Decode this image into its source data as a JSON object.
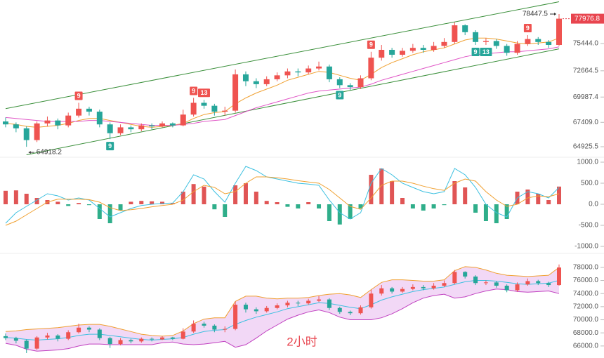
{
  "chart_data": [
    {
      "type": "candlestick",
      "open": [
        67500,
        67200,
        66800,
        65600,
        67300,
        67600,
        67100,
        68100,
        68800,
        68500,
        67200,
        66300,
        66900,
        66700,
        67100,
        67000,
        67300,
        67100,
        68200,
        69400,
        69100,
        68500,
        68600,
        72300,
        71600,
        71300,
        71800,
        72200,
        72600,
        72500,
        72900,
        73100,
        71800,
        71200,
        71000,
        71900,
        74000,
        74800,
        74300,
        74700,
        75000,
        74800,
        75200,
        75600,
        77300,
        76600,
        75600,
        75700,
        75200,
        74500,
        75400,
        75900,
        75600,
        75300
      ],
      "high": [
        67900,
        67400,
        67000,
        67500,
        68000,
        67800,
        68400,
        69400,
        69000,
        68700,
        67400,
        67200,
        67100,
        67300,
        67300,
        67500,
        67400,
        68700,
        69900,
        69700,
        69300,
        69000,
        72800,
        72600,
        71900,
        72100,
        72500,
        72900,
        72900,
        73200,
        73600,
        73300,
        72000,
        71400,
        72200,
        74600,
        75300,
        75000,
        75000,
        75400,
        75300,
        75600,
        76000,
        77600,
        77400,
        76800,
        76000,
        75900,
        75400,
        75700,
        76300,
        76100,
        75800,
        78447.5
      ],
      "low": [
        66900,
        66400,
        64918.2,
        65400,
        67000,
        66700,
        66900,
        67900,
        68100,
        66900,
        65700,
        66100,
        66400,
        66500,
        66700,
        66900,
        66900,
        67000,
        68000,
        68800,
        68100,
        68100,
        68400,
        71100,
        70900,
        71100,
        71600,
        71900,
        72100,
        72300,
        72700,
        71500,
        70900,
        70700,
        70800,
        71700,
        73700,
        74000,
        74100,
        74500,
        74500,
        74600,
        75000,
        75400,
        76300,
        75300,
        75300,
        74900,
        74200,
        74300,
        75200,
        75300,
        75000,
        75200
      ],
      "close": [
        67200,
        66800,
        65600,
        67300,
        67600,
        67100,
        68100,
        68800,
        68500,
        67200,
        66300,
        66900,
        66700,
        67100,
        67000,
        67300,
        67100,
        68200,
        69400,
        69100,
        68500,
        68600,
        72300,
        71600,
        71300,
        71800,
        72200,
        72600,
        72500,
        72900,
        73100,
        71800,
        71200,
        71000,
        71900,
        74000,
        74800,
        74300,
        74700,
        75000,
        74800,
        75200,
        75600,
        77300,
        76600,
        75600,
        75700,
        75200,
        74500,
        75400,
        75900,
        75600,
        75300,
        77976.8
      ],
      "up_color": "#ef5350",
      "down_color": "#26a69a",
      "series": [
        {
          "color": "#f0a030",
          "values": [
            67300,
            67200,
            67000,
            66900,
            67000,
            67100,
            67300,
            67600,
            67800,
            67800,
            67600,
            67400,
            67200,
            67000,
            66900,
            67000,
            67100,
            67300,
            67800,
            68200,
            68400,
            68500,
            69300,
            69900,
            70400,
            70800,
            71200,
            71700,
            72000,
            72300,
            72600,
            72500,
            72200,
            71900,
            71700,
            72300,
            73000,
            73500,
            73900,
            74300,
            74600,
            74800,
            75000,
            75400,
            75800,
            76000,
            76000,
            75900,
            75700,
            75500,
            75400,
            75500,
            75600,
            76000
          ]
        },
        {
          "color": "#e055c6",
          "values": [
            67900,
            67800,
            67700,
            67600,
            67500,
            67500,
            67500,
            67500,
            67600,
            67600,
            67500,
            67400,
            67300,
            67200,
            67100,
            67100,
            67100,
            67200,
            67300,
            67500,
            67600,
            67700,
            68100,
            68500,
            68900,
            69200,
            69500,
            69800,
            70100,
            70400,
            70600,
            70700,
            70800,
            70900,
            71000,
            71300,
            71700,
            72000,
            72300,
            72600,
            72900,
            73200,
            73500,
            73800,
            74100,
            74300,
            74400,
            74500,
            74600,
            74600,
            74700,
            74800,
            74900,
            75100
          ]
        }
      ],
      "trendlines": [
        {
          "color": "#3a8f3a",
          "x": [
            0,
            53
          ],
          "y": [
            68800,
            79700
          ]
        },
        {
          "color": "#3a8f3a",
          "x": [
            2,
            53
          ],
          "y": [
            64100,
            74900
          ]
        }
      ],
      "signals": [
        {
          "index": 7,
          "label": "9",
          "side": "above"
        },
        {
          "index": 18,
          "label": "9",
          "side": "above"
        },
        {
          "index": 19,
          "label": "13",
          "side": "above"
        },
        {
          "index": 35,
          "label": "9",
          "side": "above"
        },
        {
          "index": 50,
          "label": "9",
          "side": "above"
        },
        {
          "index": 10,
          "label": "9",
          "side": "below"
        },
        {
          "index": 32,
          "label": "9",
          "side": "below"
        },
        {
          "index": 45,
          "label": "9",
          "side": "below"
        },
        {
          "index": 46,
          "label": "13",
          "side": "below"
        }
      ],
      "tag_color": "#e8454f",
      "ylim": [
        63995,
        79880
      ],
      "yticks": [
        64925.5,
        {
          "value": 67409,
          "label": "67409.0"
        },
        69987.4,
        72664.5,
        {
          "value": 75444,
          "label": "75444.0"
        }
      ]
    },
    {
      "type": "macd",
      "values": [
        320,
        330,
        250,
        150,
        100,
        60,
        -40,
        30,
        -20,
        -350,
        -450,
        -150,
        60,
        80,
        70,
        60,
        30,
        300,
        480,
        420,
        -120,
        -300,
        450,
        500,
        300,
        80,
        50,
        -60,
        -100,
        50,
        -100,
        -400,
        -480,
        -350,
        -100,
        700,
        850,
        550,
        150,
        -100,
        -150,
        -100,
        -20,
        550,
        400,
        -200,
        -400,
        -450,
        -350,
        300,
        350,
        250,
        100,
        420
      ],
      "up_color": "#e05555",
      "down_color": "#2fae8a",
      "series": [
        {
          "color": "#3cc0e0",
          "values": [
            -450,
            -200,
            -50,
            100,
            250,
            200,
            100,
            150,
            100,
            -100,
            -300,
            -200,
            -100,
            -30,
            0,
            20,
            30,
            300,
            700,
            600,
            300,
            50,
            500,
            900,
            800,
            650,
            600,
            550,
            500,
            480,
            450,
            100,
            -200,
            -350,
            -200,
            500,
            850,
            700,
            500,
            400,
            300,
            250,
            300,
            850,
            700,
            400,
            0,
            -200,
            -300,
            150,
            300,
            250,
            150,
            400
          ]
        },
        {
          "color": "#f0a030",
          "values": [
            -500,
            -400,
            -250,
            -100,
            50,
            120,
            120,
            120,
            110,
            50,
            -80,
            -150,
            -130,
            -100,
            -60,
            -30,
            0,
            100,
            300,
            450,
            400,
            250,
            300,
            500,
            650,
            650,
            630,
            600,
            560,
            530,
            500,
            350,
            150,
            -50,
            -120,
            150,
            450,
            550,
            550,
            500,
            430,
            370,
            330,
            500,
            600,
            550,
            300,
            100,
            -50,
            0,
            150,
            200,
            180,
            250
          ]
        }
      ],
      "ylim": [
        -1100,
        1100
      ],
      "yticks": [
        {
          "value": 1000,
          "label": "1000.0"
        },
        {
          "value": 500,
          "label": "500.0"
        },
        {
          "value": 0,
          "label": "0.0"
        },
        {
          "value": -500,
          "label": "-500.0"
        },
        {
          "value": -1000,
          "label": "-1000.0"
        }
      ]
    },
    {
      "type": "bollinger",
      "upper": [
        68200,
        68300,
        68500,
        68600,
        68700,
        68800,
        69000,
        69200,
        69300,
        69300,
        69000,
        68600,
        68200,
        67800,
        67600,
        67500,
        67600,
        68300,
        69400,
        70100,
        70300,
        70300,
        72800,
        73600,
        73600,
        73300,
        73200,
        73300,
        73300,
        73400,
        73700,
        73900,
        74000,
        73800,
        73400,
        74600,
        75700,
        76100,
        76100,
        76000,
        75900,
        75900,
        76100,
        77500,
        78100,
        78000,
        77600,
        77100,
        76800,
        76700,
        76600,
        76700,
        76800,
        78000
      ],
      "middle": [
        67300,
        67200,
        67000,
        66900,
        67000,
        67100,
        67300,
        67600,
        67800,
        67800,
        67600,
        67400,
        67200,
        67000,
        66900,
        67000,
        67100,
        67300,
        67800,
        68200,
        68400,
        68500,
        69300,
        69900,
        70400,
        70800,
        71200,
        71700,
        72000,
        72300,
        72600,
        72500,
        72200,
        71900,
        71700,
        72300,
        73000,
        73500,
        73900,
        74300,
        74600,
        74800,
        75000,
        75400,
        75800,
        76000,
        76000,
        75900,
        75700,
        75500,
        75400,
        75500,
        75600,
        76000
      ],
      "lower": [
        66400,
        66100,
        65500,
        65200,
        65300,
        65400,
        65600,
        66000,
        66300,
        66300,
        66200,
        66200,
        66200,
        66200,
        66200,
        66500,
        66600,
        66300,
        66200,
        66300,
        66500,
        66700,
        65800,
        66200,
        67200,
        68300,
        69200,
        70100,
        70700,
        71200,
        71500,
        71100,
        70400,
        70000,
        70000,
        70000,
        70300,
        70900,
        71700,
        72600,
        73300,
        73700,
        73900,
        73300,
        73500,
        74000,
        74400,
        74700,
        74600,
        74300,
        74200,
        74300,
        74400,
        74000
      ],
      "upper_color": "#f0a030",
      "middle_color": "#3cc0e0",
      "lower_color": "#c040c0",
      "fill_color": "#ecc8f2",
      "label": "2小时",
      "label_color": "#e8454f",
      "ylim": [
        64700,
        79700
      ],
      "yticks": [
        {
          "value": 78000,
          "label": "78000.0"
        },
        {
          "value": 76000,
          "label": "76000.0"
        },
        {
          "value": 74000,
          "label": "74000.0"
        },
        {
          "value": 72000,
          "label": "72000.0"
        },
        {
          "value": 70000,
          "label": "70000.0"
        },
        {
          "value": 68000,
          "label": "68000.0"
        },
        {
          "value": 66000,
          "label": "66000.0"
        }
      ]
    }
  ]
}
